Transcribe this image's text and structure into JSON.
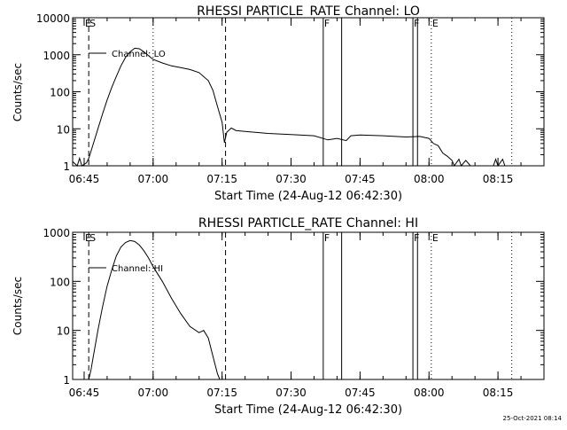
{
  "footer_timestamp": "25-Oct-2021 08:14",
  "chart_data": [
    {
      "type": "line",
      "title": "RHESSI PARTICLE_RATE Channel: LO",
      "xlabel": "Start Time (24-Aug-12 06:42:30)",
      "ylabel": "Counts/sec",
      "yscale": "log",
      "ylim": [
        1,
        10000
      ],
      "xlim": [
        "06:42:30",
        "08:25:00"
      ],
      "yticks": [
        "1",
        "10",
        "100",
        "1000",
        "10000"
      ],
      "xticks": [
        "06:45",
        "07:00",
        "07:15",
        "07:30",
        "07:45",
        "08:00",
        "08:15"
      ],
      "legend": "Channel: LO",
      "flags": [
        {
          "label": "E",
          "time": "06:45:00"
        },
        {
          "label": "S",
          "time": "06:46:00"
        },
        {
          "label": "F",
          "time": "07:37:00"
        },
        {
          "label": "F",
          "time": "07:56:30"
        },
        {
          "label": "E",
          "time": "08:00:30"
        }
      ],
      "vlines_dashed": [
        "06:46:00",
        "07:15:45"
      ],
      "vlines_dotted": [
        "07:00:00",
        "08:00:30",
        "08:18:00"
      ],
      "vlines_solid": [
        "07:37:00",
        "07:41:00",
        "07:56:30",
        "07:57:30"
      ],
      "series": [
        {
          "name": "Channel: LO",
          "points": [
            [
              "06:42:30",
              1.3
            ],
            [
              "06:43:30",
              1.0
            ],
            [
              "06:44:00",
              1.6
            ],
            [
              "06:44:30",
              1.0
            ],
            [
              "06:45:30",
              1.2
            ],
            [
              "06:46:00",
              1.6
            ],
            [
              "06:46:30",
              2.5
            ],
            [
              "06:47:00",
              4.0
            ],
            [
              "06:48:00",
              10
            ],
            [
              "06:49:00",
              25
            ],
            [
              "06:50:00",
              60
            ],
            [
              "06:51:00",
              130
            ],
            [
              "06:52:00",
              260
            ],
            [
              "06:53:00",
              500
            ],
            [
              "06:54:00",
              850
            ],
            [
              "06:55:00",
              1200
            ],
            [
              "06:56:00",
              1500
            ],
            [
              "06:57:00",
              1450
            ],
            [
              "06:58:00",
              1200
            ],
            [
              "06:59:00",
              950
            ],
            [
              "07:00:00",
              750
            ],
            [
              "07:02:00",
              600
            ],
            [
              "07:04:00",
              500
            ],
            [
              "07:06:00",
              450
            ],
            [
              "07:08:00",
              400
            ],
            [
              "07:10:00",
              330
            ],
            [
              "07:12:00",
              200
            ],
            [
              "07:13:00",
              110
            ],
            [
              "07:14:00",
              40
            ],
            [
              "07:15:00",
              15
            ],
            [
              "07:15:30",
              4.2
            ],
            [
              "07:16:00",
              8
            ],
            [
              "07:17:00",
              10.5
            ],
            [
              "07:18:00",
              9
            ],
            [
              "07:20:00",
              8.5
            ],
            [
              "07:25:00",
              7.5
            ],
            [
              "07:30:00",
              7
            ],
            [
              "07:35:00",
              6.5
            ],
            [
              "07:38:00",
              5
            ],
            [
              "07:40:00",
              5.5
            ],
            [
              "07:42:00",
              4.8
            ],
            [
              "07:43:00",
              6.5
            ],
            [
              "07:45:00",
              6.8
            ],
            [
              "07:50:00",
              6.5
            ],
            [
              "07:55:00",
              6
            ],
            [
              "07:58:00",
              6.2
            ],
            [
              "08:00:00",
              5.5
            ],
            [
              "08:01:00",
              4
            ],
            [
              "08:02:00",
              3.5
            ],
            [
              "08:03:00",
              2.2
            ],
            [
              "08:04:00",
              1.8
            ],
            [
              "08:05:00",
              1.4
            ],
            [
              "08:05:30",
              1.0
            ],
            [
              "08:06:30",
              1.5
            ],
            [
              "08:07:00",
              1.0
            ],
            [
              "08:08:00",
              1.4
            ],
            [
              "08:09:00",
              1.0
            ],
            [
              "08:14:00",
              1.0
            ],
            [
              "08:14:30",
              1.5
            ],
            [
              "08:15:00",
              1.0
            ],
            [
              "08:16:00",
              1.5
            ],
            [
              "08:16:30",
              1.0
            ]
          ]
        }
      ]
    },
    {
      "type": "line",
      "title": "RHESSI PARTICLE_RATE Channel: HI",
      "xlabel": "Start Time (24-Aug-12 06:42:30)",
      "ylabel": "Counts/sec",
      "yscale": "log",
      "ylim": [
        1,
        1000
      ],
      "xlim": [
        "06:42:30",
        "08:25:00"
      ],
      "yticks": [
        "1",
        "10",
        "100",
        "1000"
      ],
      "xticks": [
        "06:45",
        "07:00",
        "07:15",
        "07:30",
        "07:45",
        "08:00",
        "08:15"
      ],
      "legend": "Channel: HI",
      "flags": [
        {
          "label": "E",
          "time": "06:45:00"
        },
        {
          "label": "S",
          "time": "06:46:00"
        },
        {
          "label": "F",
          "time": "07:37:00"
        },
        {
          "label": "F",
          "time": "07:56:30"
        },
        {
          "label": "E",
          "time": "08:00:30"
        }
      ],
      "vlines_dashed": [
        "06:46:00",
        "07:15:45"
      ],
      "vlines_dotted": [
        "07:00:00",
        "08:00:30",
        "08:18:00"
      ],
      "vlines_solid": [
        "07:37:00",
        "07:41:00",
        "07:56:30",
        "07:57:30"
      ],
      "series": [
        {
          "name": "Channel: HI",
          "points": [
            [
              "06:46:00",
              1.0
            ],
            [
              "06:46:30",
              1.6
            ],
            [
              "06:47:00",
              3
            ],
            [
              "06:48:00",
              10
            ],
            [
              "06:49:00",
              30
            ],
            [
              "06:50:00",
              80
            ],
            [
              "06:51:00",
              170
            ],
            [
              "06:52:00",
              330
            ],
            [
              "06:53:00",
              500
            ],
            [
              "06:54:00",
              620
            ],
            [
              "06:55:00",
              680
            ],
            [
              "06:56:00",
              650
            ],
            [
              "06:57:00",
              550
            ],
            [
              "06:58:00",
              420
            ],
            [
              "06:59:00",
              300
            ],
            [
              "07:00:00",
              200
            ],
            [
              "07:02:00",
              100
            ],
            [
              "07:04:00",
              45
            ],
            [
              "07:06:00",
              22
            ],
            [
              "07:08:00",
              12
            ],
            [
              "07:10:00",
              9
            ],
            [
              "07:11:00",
              10
            ],
            [
              "07:12:00",
              7
            ],
            [
              "07:13:00",
              3
            ],
            [
              "07:14:00",
              1.3
            ],
            [
              "07:14:30",
              1.0
            ]
          ]
        }
      ]
    }
  ]
}
